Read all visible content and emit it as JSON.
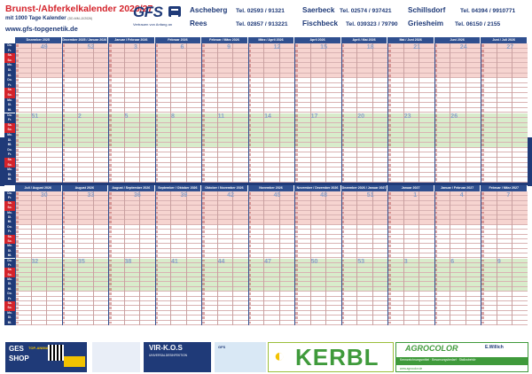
{
  "header": {
    "title": "Brunst-/Abferkelkalender 2026/27",
    "subtitle": "mit 1000 Tage Kalender",
    "subtitle_small": "(DD-MM-JJ/2026)",
    "website": "www.gfs-topgenetik.de",
    "logo": "GFS",
    "slogan": "Vertrauen von Anfang an",
    "locations": [
      {
        "name": "Ascheberg",
        "tel": "Tel. 02593 / 91321"
      },
      {
        "name": "Saerbeck",
        "tel": "Tel. 02574 / 937421"
      },
      {
        "name": "Schillsdorf",
        "tel": "Tel. 04394 / 9910771"
      },
      {
        "name": "Rees",
        "tel": "Tel. 02857 / 913221"
      },
      {
        "name": "Fischbeck",
        "tel": "Tel. 039323 / 79790"
      },
      {
        "name": "Griesheim",
        "tel": "Tel. 06150 / 2155"
      }
    ]
  },
  "colors": {
    "navy": "#1f3a78",
    "red": "#d4232b",
    "pink_row": "#f6d4d0",
    "green_row": "#d8eccb",
    "white_row": "#ffffff",
    "month_header": "#2f4f8f"
  },
  "calendar": {
    "day_labels": [
      "Do.",
      "Fr.",
      "Sa.",
      "So.",
      "Mo.",
      "Di.",
      "Mi.",
      "Do.",
      "Fr.",
      "Sa.",
      "So.",
      "Mo.",
      "Di.",
      "Mi.",
      "Do.",
      "Fr.",
      "Sa.",
      "So.",
      "Mo.",
      "Di.",
      "Mi.",
      "Do.",
      "Fr.",
      "Sa.",
      "So.",
      "Mo.",
      "Di.",
      "Mi."
    ],
    "top_months": [
      "Dezember 2025",
      "Dezember 2025 / Januar 2026",
      "Januar / Februar 2026",
      "Februar 2026",
      "Februar / März 2026",
      "März / April 2026",
      "April 2026",
      "April / Mai 2026",
      "Mai / Juni 2026",
      "Juni 2026",
      "Juni / Juli 2026"
    ],
    "top_weeks_1": [
      "49",
      "",
      "52",
      "",
      "",
      "3",
      "",
      "",
      "6",
      "",
      "",
      "9",
      "",
      "",
      "12",
      "",
      "",
      "15",
      "",
      "",
      "18",
      "",
      "",
      "21",
      "",
      "",
      "24",
      "",
      "",
      "27"
    ],
    "top_weeks_2": [
      "",
      "",
      "",
      "",
      "",
      "",
      "51",
      "",
      "2",
      "",
      "",
      "5",
      "",
      "",
      "8",
      "",
      "",
      "11",
      "",
      "",
      "14",
      "",
      "",
      "17",
      "",
      "",
      "20",
      "",
      "",
      "23",
      "",
      "",
      "26"
    ],
    "bottom_months": [
      "Juli / August 2026",
      "August 2026",
      "August / September 2026",
      "September / Oktober 2026",
      "Oktober / November 2026",
      "November 2026",
      "November / Dezember 2026",
      "Dezember 2026 / Januar 2027",
      "Januar 2027",
      "Januar / Februar 2027",
      "Februar / März 2027"
    ],
    "bottom_weeks_1": [
      "30",
      "",
      "",
      "33",
      "",
      "",
      "36",
      "",
      "",
      "39",
      "",
      "",
      "42",
      "",
      "",
      "45",
      "",
      "",
      "48",
      "",
      "",
      "51",
      "",
      "",
      "1",
      "",
      "",
      "4",
      "",
      "",
      "7"
    ],
    "bottom_weeks_2": [
      "",
      "",
      "",
      "",
      "",
      "",
      "",
      "",
      "",
      "",
      "",
      "",
      "",
      "",
      "",
      "",
      "",
      "",
      "",
      "",
      "",
      "",
      "",
      "",
      "",
      "",
      "",
      "",
      "",
      "",
      ""
    ],
    "wk_top1": [
      "49",
      "52",
      "3",
      "6",
      "9",
      "12",
      "15",
      "18",
      "21",
      "24",
      "27"
    ],
    "wk_top2": [
      "51",
      "2",
      "5",
      "8",
      "11",
      "14",
      "17",
      "20",
      "23",
      "26"
    ],
    "wk_bot1": [
      "30",
      "33",
      "36",
      "39",
      "42",
      "45",
      "48",
      "51",
      "1",
      "4",
      "7"
    ],
    "wk_bot2": [
      "32",
      "35",
      "38",
      "41",
      "44",
      "47",
      "50",
      "53",
      "3",
      "6",
      "9"
    ]
  },
  "ads": {
    "gesshop_1": "GES",
    "gesshop_2": "SHOP",
    "gesshop_tag": "TOP-ANIMAL",
    "vikos": "VIR-K.O.S",
    "vikos_sub": "UNIVERSALDESINFEKTION",
    "mid": "GFS",
    "kerbl": "KERBL",
    "agro": "AGROCOLOR",
    "agro_sub": "Kennzeichnungsmittel · Besamungsbedarf · Stallzubehör",
    "agro_w": "E.Willich",
    "agro_url": "www.agrocolor.de"
  }
}
